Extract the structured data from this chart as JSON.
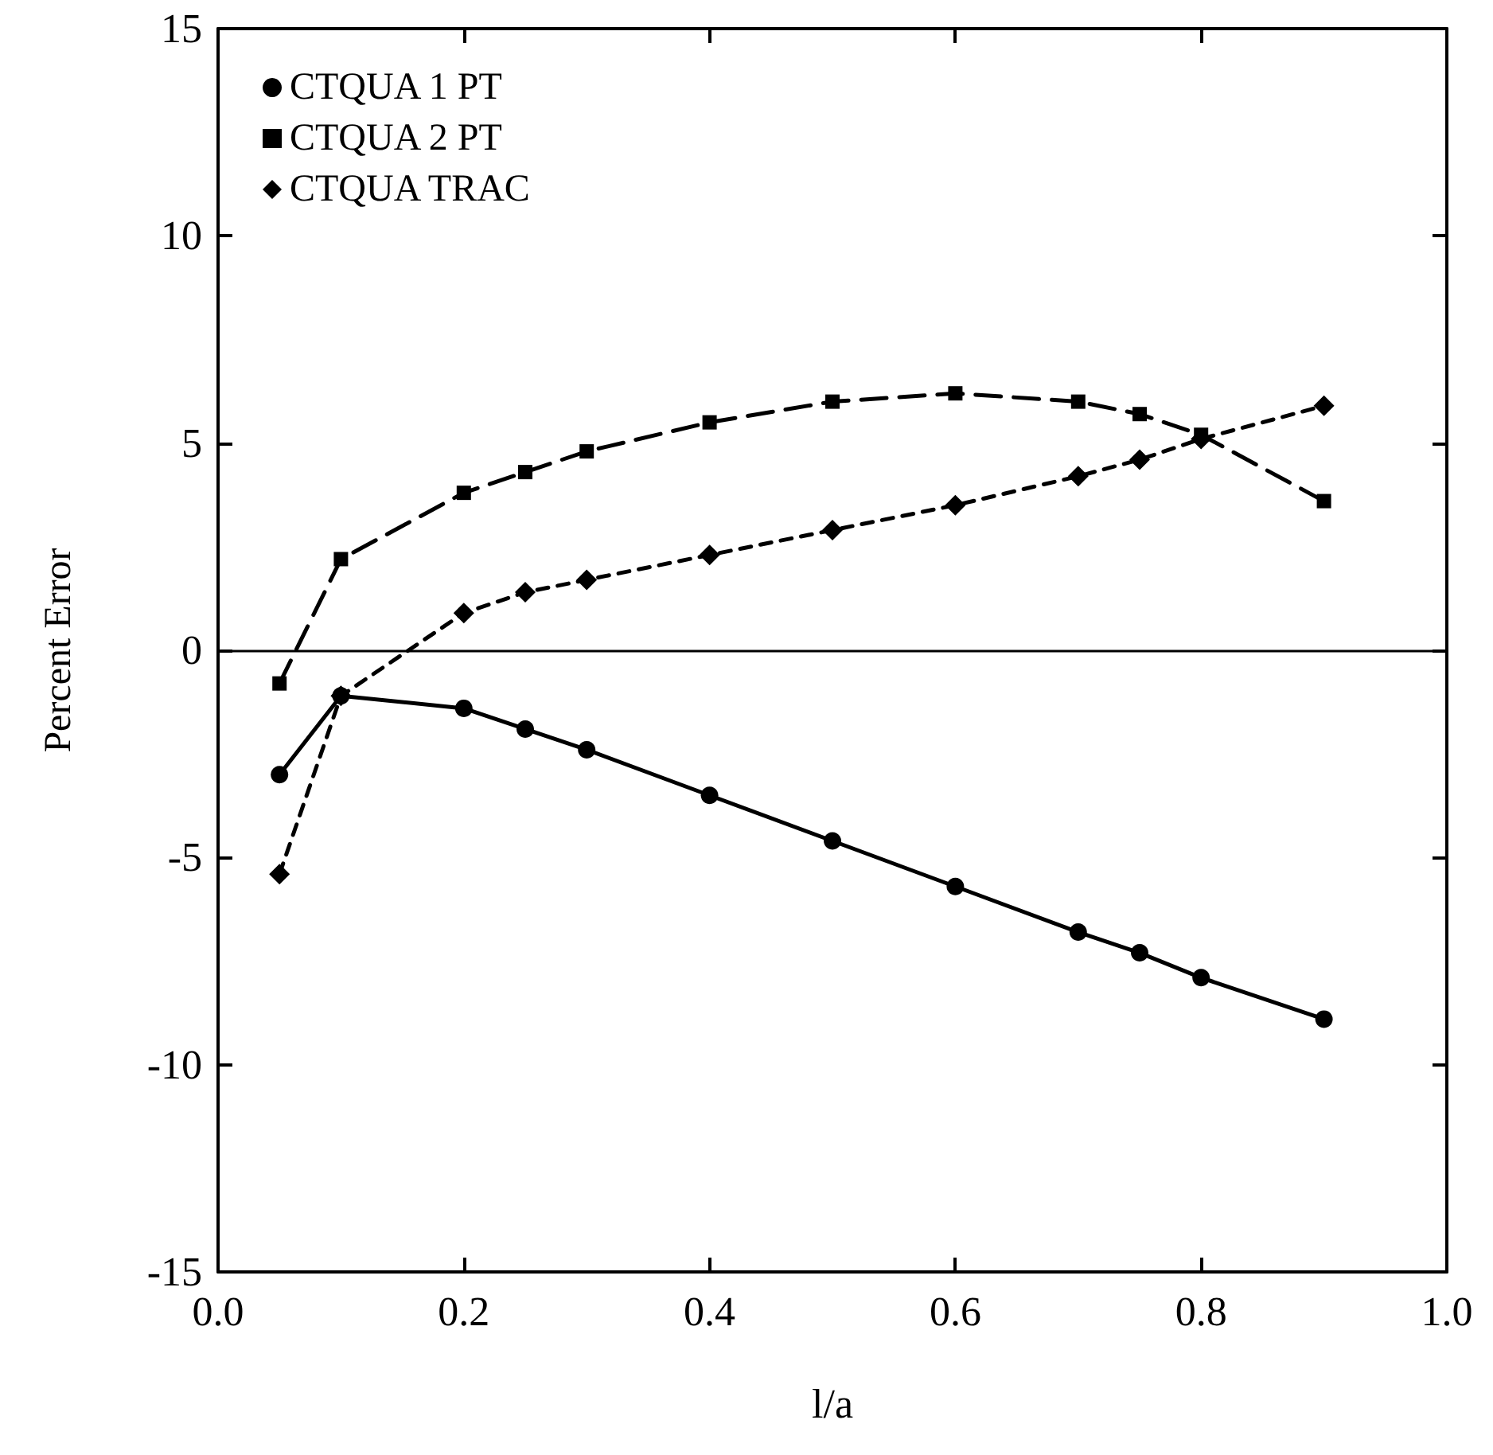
{
  "chart_data": {
    "type": "line",
    "xlabel": "l/a",
    "ylabel": "Percent Error",
    "x": [
      0.05,
      0.1,
      0.2,
      0.25,
      0.3,
      0.4,
      0.5,
      0.6,
      0.7,
      0.75,
      0.8,
      0.9
    ],
    "series": [
      {
        "name": "CTQUA 1 PT",
        "color": "#000000",
        "marker": "circle",
        "line_style": "solid",
        "values": [
          -3.0,
          -1.1,
          -1.4,
          -1.9,
          -2.4,
          -3.5,
          -4.6,
          -5.7,
          -6.8,
          -7.3,
          -7.9,
          -8.9
        ]
      },
      {
        "name": "CTQUA 2 PT",
        "color": "#000000",
        "marker": "square",
        "line_style": "dashed",
        "values": [
          -0.8,
          2.2,
          3.8,
          4.3,
          4.8,
          5.5,
          6.0,
          6.2,
          6.0,
          5.7,
          5.2,
          3.6
        ]
      },
      {
        "name": "CTQUA TRAC",
        "color": "#000000",
        "marker": "diamond",
        "line_style": "dotted",
        "values": [
          -5.4,
          -1.1,
          0.9,
          1.4,
          1.7,
          2.3,
          2.9,
          3.5,
          4.2,
          4.6,
          5.1,
          5.9
        ]
      }
    ],
    "xlim": [
      0,
      1
    ],
    "xticks": [
      {
        "value": 0,
        "label": "0.0"
      },
      {
        "value": 0.2,
        "label": "0.2"
      },
      {
        "value": 0.4,
        "label": "0.4"
      },
      {
        "value": 0.6,
        "label": "0.6"
      },
      {
        "value": 0.8,
        "label": "0.8"
      },
      {
        "value": 1,
        "label": "1.0"
      }
    ],
    "ylim": [
      -15,
      15
    ],
    "yticks": [
      -15,
      -10,
      -5,
      0,
      5,
      10,
      15
    ],
    "ref_lines": [
      {
        "axis": "y",
        "value": 0,
        "color": "#000000"
      }
    ],
    "legend": "top left",
    "grid": false
  }
}
